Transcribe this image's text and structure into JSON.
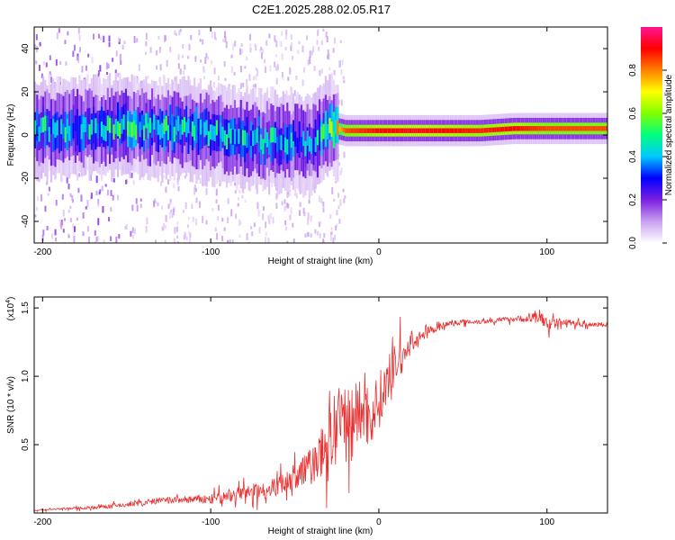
{
  "title": "C2E1.2025.288.02.05.R17",
  "chart_data": [
    {
      "type": "heatmap",
      "title": "C2E1.2025.288.02.05.R17",
      "xlabel": "Height of straight line (km)",
      "ylabel": "Frequency (Hz)",
      "xlim": [
        -205,
        136
      ],
      "ylim": [
        -50,
        50
      ],
      "xticks": [
        -200,
        -100,
        0,
        100
      ],
      "yticks": [
        -40,
        -20,
        0,
        20,
        40
      ],
      "colorbar": {
        "label": "Normalized spectral amplitude",
        "range": [
          0,
          1
        ],
        "ticks": [
          0.0,
          0.2,
          0.4,
          0.6,
          0.8
        ],
        "colors": [
          "#ffffff",
          "#c9a0f0",
          "#7a1fe0",
          "#0000ff",
          "#00c8ff",
          "#00ff80",
          "#80ff00",
          "#ffff00",
          "#ff8000",
          "#ff0000",
          "#ff1493"
        ]
      },
      "ridge": {
        "description_free": true,
        "x": [
          -205,
          -180,
          -150,
          -120,
          -100,
          -80,
          -60,
          -40,
          -30,
          -20,
          0,
          20,
          40,
          60,
          80,
          100,
          120,
          136
        ],
        "freq": [
          3,
          3,
          4,
          3,
          1,
          -2,
          -3,
          -4,
          4,
          2,
          2,
          2,
          2,
          2,
          3,
          3,
          3,
          3
        ],
        "amplitude": [
          0.45,
          0.45,
          0.5,
          0.45,
          0.45,
          0.45,
          0.45,
          0.4,
          0.6,
          0.85,
          0.9,
          0.92,
          0.9,
          0.88,
          0.9,
          0.85,
          0.85,
          0.85
        ]
      }
    },
    {
      "type": "line",
      "xlabel": "Height of straight line (km)",
      "ylabel": "SNR (10 * v/v)",
      "scale_label_base": "(x10",
      "scale_label_exp": "4",
      "scale_label_end": ")",
      "xlim": [
        -205,
        136
      ],
      "ylim": [
        0,
        1.58
      ],
      "xticks": [
        -200,
        -100,
        0,
        100
      ],
      "yticks": [
        0.5,
        1.0,
        1.5
      ],
      "ytick_labels": [
        "0.5",
        "1.0",
        "1.5"
      ],
      "color": "#e83030",
      "series": [
        {
          "name": "SNR",
          "x": [
            -205,
            -190,
            -170,
            -150,
            -130,
            -110,
            -100,
            -90,
            -80,
            -70,
            -60,
            -50,
            -40,
            -30,
            -25,
            -20,
            -15,
            -10,
            -5,
            0,
            5,
            10,
            15,
            20,
            30,
            40,
            50,
            60,
            70,
            80,
            90,
            95,
            100,
            110,
            120,
            136
          ],
          "y": [
            0.02,
            0.03,
            0.04,
            0.06,
            0.09,
            0.1,
            0.1,
            0.12,
            0.15,
            0.16,
            0.2,
            0.26,
            0.35,
            0.5,
            0.6,
            0.65,
            0.72,
            0.75,
            0.7,
            0.82,
            0.95,
            1.1,
            1.15,
            1.25,
            1.33,
            1.38,
            1.4,
            1.4,
            1.41,
            1.42,
            1.42,
            1.44,
            1.38,
            1.4,
            1.38,
            1.38
          ],
          "noise": [
            0.01,
            0.01,
            0.02,
            0.03,
            0.04,
            0.05,
            0.06,
            0.08,
            0.09,
            0.1,
            0.12,
            0.15,
            0.25,
            0.35,
            0.5,
            0.5,
            0.4,
            0.4,
            0.4,
            0.35,
            0.3,
            0.25,
            0.2,
            0.1,
            0.05,
            0.04,
            0.03,
            0.03,
            0.03,
            0.03,
            0.05,
            0.12,
            0.08,
            0.04,
            0.03,
            0.03
          ]
        }
      ]
    }
  ]
}
